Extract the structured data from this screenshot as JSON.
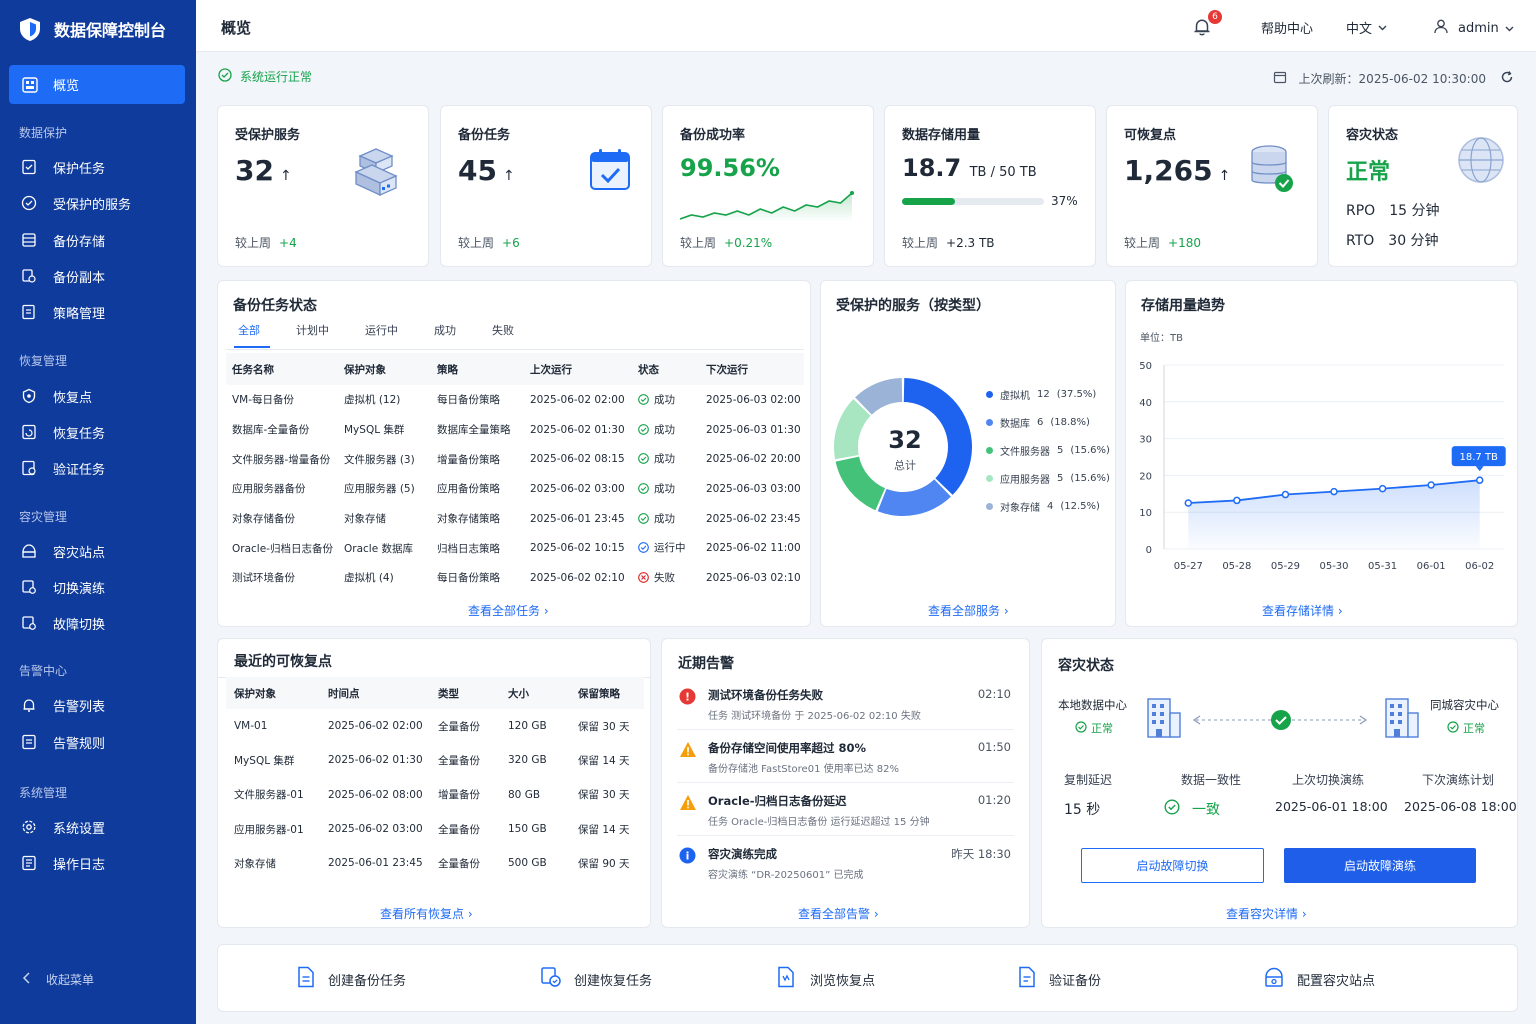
{
  "app": {
    "title": "数据保障控制台"
  },
  "sidebar": {
    "active_label": "概览",
    "sections": [
      {
        "title": "数据保护",
        "items": [
          "保护任务",
          "受保护的服务",
          "备份存储",
          "备份副本",
          "策略管理"
        ]
      },
      {
        "title": "恢复管理",
        "items": [
          "恢复点",
          "恢复任务",
          "验证任务"
        ]
      },
      {
        "title": "容灾管理",
        "items": [
          "容灾站点",
          "切换演练",
          "故障切换"
        ]
      },
      {
        "title": "告警中心",
        "items": [
          "告警列表",
          "告警规则"
        ]
      },
      {
        "title": "系统管理",
        "items": [
          "系统设置",
          "操作日志"
        ]
      }
    ],
    "collapse_label": "收起菜单"
  },
  "header": {
    "page_title": "概览",
    "notification_count": "6",
    "help": "帮助中心",
    "language": "中文",
    "user": "admin"
  },
  "status": {
    "text": "系统运行正常",
    "refresh": "上次刷新：2025-06-02 10:30:00"
  },
  "kpis": {
    "services": {
      "title": "受保护服务",
      "value": "32",
      "trend": "↑",
      "foot_label": "较上周",
      "foot_value": "+4"
    },
    "tasks": {
      "title": "备份任务",
      "value": "45",
      "trend": "↑",
      "foot_label": "较上周",
      "foot_value": "+6"
    },
    "success": {
      "title": "备份成功率",
      "value": "99.56%",
      "foot_label": "较上周",
      "foot_value": "+0.21%",
      "sparkline": [
        3,
        5,
        4,
        6,
        5,
        7,
        5,
        8,
        6,
        9,
        7,
        10,
        9,
        12,
        11,
        16
      ]
    },
    "storage": {
      "title": "数据存储用量",
      "value": "18.7",
      "unit": "TB / 50 TB",
      "percent": "37%",
      "fill": 0.37,
      "foot_label": "较上周",
      "foot_value": "+2.3 TB"
    },
    "recovery": {
      "title": "可恢复点",
      "value": "1,265",
      "trend": "↑",
      "foot_label": "较上周",
      "foot_value": "+180"
    },
    "dr": {
      "title": "容灾状态",
      "value": "正常",
      "rpo_label": "RPO",
      "rpo_value": "15 分钟",
      "rto_label": "RTO",
      "rto_value": "30 分钟"
    }
  },
  "backup_status": {
    "title": "备份任务状态",
    "tabs": [
      "全部",
      "计划中",
      "运行中",
      "成功",
      "失败"
    ],
    "columns": [
      "任务名称",
      "保护对象",
      "策略",
      "上次运行",
      "状态",
      "下次运行"
    ],
    "rows": [
      [
        "VM-每日备份",
        "虚拟机 (12)",
        "每日备份策略",
        "2025-06-02 02:00",
        "成功",
        "2025-06-03 02:00"
      ],
      [
        "数据库-全量备份",
        "MySQL 集群",
        "数据库全量策略",
        "2025-06-02 01:30",
        "成功",
        "2025-06-03 01:30"
      ],
      [
        "文件服务器-增量备份",
        "文件服务器 (3)",
        "增量备份策略",
        "2025-06-02 08:15",
        "成功",
        "2025-06-02 20:00"
      ],
      [
        "应用服务器备份",
        "应用服务器 (5)",
        "应用备份策略",
        "2025-06-02 03:00",
        "成功",
        "2025-06-03 03:00"
      ],
      [
        "对象存储备份",
        "对象存储",
        "对象存储策略",
        "2025-06-01 23:45",
        "成功",
        "2025-06-02 23:45"
      ],
      [
        "Oracle-归档日志备份",
        "Oracle 数据库",
        "归档日志策略",
        "2025-06-02 10:15",
        "运行中",
        "2025-06-02 11:00"
      ],
      [
        "测试环境备份",
        "虚拟机 (4)",
        "每日备份策略",
        "2025-06-02 02:10",
        "失败",
        "2025-06-03 02:10"
      ]
    ],
    "link": "查看全部任务 ›"
  },
  "services_by_type": {
    "title": "受保护的服务（按类型）",
    "total": "32",
    "total_label": "总计",
    "legend": [
      {
        "name": "虚拟机",
        "count": "12",
        "pct": "(37.5%)",
        "value": 12,
        "color": "#1e63f0"
      },
      {
        "name": "数据库",
        "count": "6",
        "pct": "(18.8%)",
        "value": 6,
        "color": "#4f86f2"
      },
      {
        "name": "文件服务器",
        "count": "5",
        "pct": "(15.6%)",
        "value": 5,
        "color": "#45c27a"
      },
      {
        "name": "应用服务器",
        "count": "5",
        "pct": "(15.6%)",
        "value": 5,
        "color": "#a8e6c2"
      },
      {
        "name": "对象存储",
        "count": "4",
        "pct": "(12.5%)",
        "value": 4,
        "color": "#9bb3d6"
      }
    ],
    "link": "查看全部服务 ›"
  },
  "storage_trend": {
    "title": "存储用量趋势",
    "unit_label": "单位：TB",
    "callout": "18.7 TB",
    "link": "查看存储详情 ›"
  },
  "chart_data": {
    "type": "area",
    "title": "存储用量趋势",
    "ylabel": "单位：TB",
    "categories": [
      "05-27",
      "05-28",
      "05-29",
      "05-30",
      "05-31",
      "06-01",
      "06-02"
    ],
    "values": [
      12.5,
      13.2,
      14.8,
      15.6,
      16.4,
      17.4,
      18.7
    ],
    "ylim": [
      0,
      50
    ],
    "yticks": [
      0,
      10,
      20,
      30,
      40,
      50
    ],
    "grid": true
  },
  "recovery_points": {
    "title": "最近的可恢复点",
    "columns": [
      "保护对象",
      "时间点",
      "类型",
      "大小",
      "保留策略"
    ],
    "rows": [
      [
        "VM-01",
        "2025-06-02 02:00",
        "全量备份",
        "120 GB",
        "保留 30 天"
      ],
      [
        "MySQL 集群",
        "2025-06-02 01:30",
        "全量备份",
        "320 GB",
        "保留 14 天"
      ],
      [
        "文件服务器-01",
        "2025-06-02 08:00",
        "增量备份",
        "80 GB",
        "保留 30 天"
      ],
      [
        "应用服务器-01",
        "2025-06-02 03:00",
        "全量备份",
        "150 GB",
        "保留 14 天"
      ],
      [
        "对象存储",
        "2025-06-01 23:45",
        "全量备份",
        "500 GB",
        "保留 90 天"
      ]
    ],
    "link": "查看所有恢复点 ›"
  },
  "alerts": {
    "title": "近期告警",
    "items": [
      {
        "level": "error",
        "color": "#e53935",
        "title": "测试环境备份任务失败",
        "time": "02:10",
        "desc": "任务 测试环境备份 于 2025-06-02 02:10 失败"
      },
      {
        "level": "warning",
        "color": "#f59e0b",
        "title": "备份存储空间使用率超过 80%",
        "time": "01:50",
        "desc": "备份存储池 FastStore01 使用率已达 82%"
      },
      {
        "level": "warning",
        "color": "#f59e0b",
        "title": "Oracle-归档日志备份延迟",
        "time": "01:20",
        "desc": "任务 Oracle-归档日志备份 运行延迟超过 15 分钟"
      },
      {
        "level": "info",
        "color": "#1e63f0",
        "title": "容灾演练完成",
        "time": "昨天 18:30",
        "desc": "容灾演练 “DR-20250601” 已完成"
      }
    ],
    "link": "查看全部告警 ›"
  },
  "dr_status": {
    "title": "容灾状态",
    "local": {
      "name": "本地数据中心",
      "status": "正常"
    },
    "remote": {
      "name": "同城容灾中心",
      "status": "正常"
    },
    "metrics": [
      {
        "label": "复制延迟",
        "value": "15 秒"
      },
      {
        "label": "数据一致性",
        "value": "一致"
      },
      {
        "label": "上次切换演练",
        "value": "2025-06-01 18:00"
      },
      {
        "label": "下次演练计划",
        "value": "2025-06-08 18:00"
      }
    ],
    "btn_failover": "启动故障切换",
    "btn_drill": "启动故障演练",
    "link": "查看容灾详情 ›"
  },
  "quick_actions": [
    "创建备份任务",
    "创建恢复任务",
    "浏览恢复点",
    "验证备份",
    "配置容灾站点"
  ],
  "colors": {
    "primary": "#1e6bf5",
    "sidebar": "#0f3c9c",
    "success": "#16a34a",
    "danger": "#dc2626"
  }
}
